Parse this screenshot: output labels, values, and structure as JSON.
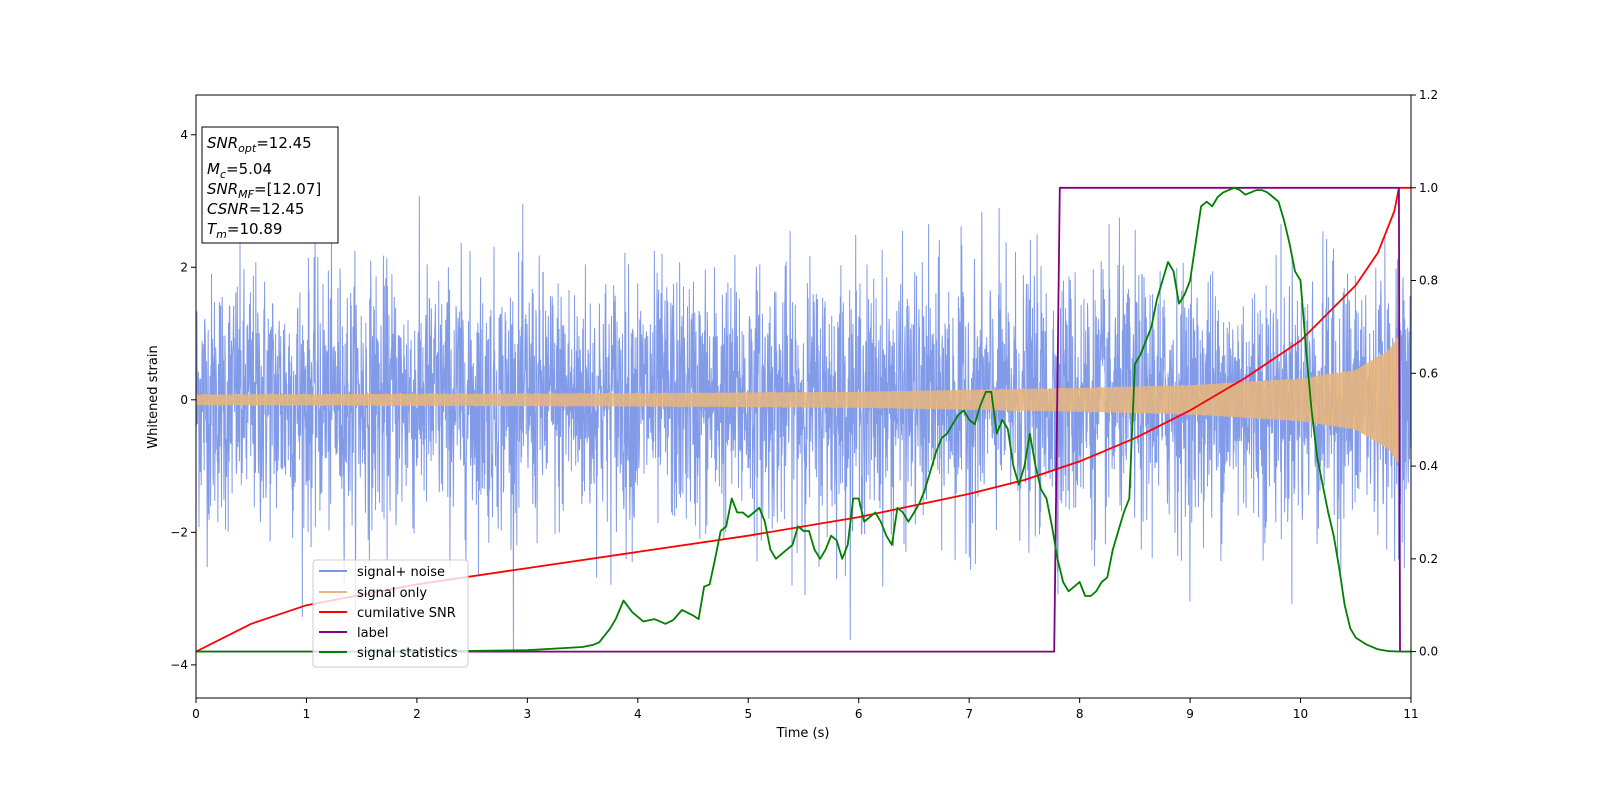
{
  "chart_data": {
    "type": "line",
    "xlabel": "Time (s)",
    "ylabel": "Whitened strain",
    "xlim": [
      0,
      11
    ],
    "ylim_left": [
      -4.5,
      4.6
    ],
    "ylim_right": [
      -0.1,
      1.2
    ],
    "x_ticks": [
      0,
      1,
      2,
      3,
      4,
      5,
      6,
      7,
      8,
      9,
      10,
      11
    ],
    "y_left_ticks": [
      -4,
      -2,
      0,
      2,
      4
    ],
    "y_right_ticks": [
      "0.0",
      "0.2",
      "0.4",
      "0.6",
      "0.8",
      "1.0",
      "1.2"
    ],
    "grid": false,
    "legend": {
      "placement": "lower-left",
      "entries": [
        "signal+ noise",
        "signal only",
        "cumilative SNR",
        "label",
        "signal statistics"
      ]
    },
    "annotation": {
      "lines": [
        {
          "base": "SNR",
          "sub": "opt",
          "value": "=12.45"
        },
        {
          "base": "M",
          "sub": "c",
          "value": "=5.04"
        },
        {
          "base": "SNR",
          "sub": "MF",
          "value": "=[12.07]"
        },
        {
          "base": "CSNR",
          "sub": "",
          "value": "=12.45"
        },
        {
          "base": "T",
          "sub": "m",
          "value": "=10.89"
        }
      ]
    },
    "series": [
      {
        "name": "signal+ noise",
        "axis": "left",
        "color": "#7b96e8",
        "style": "noise band",
        "amplitude_range": [
          -4.1,
          4.2
        ],
        "typical_peak": 2.3
      },
      {
        "name": "signal only",
        "axis": "left",
        "color": "#e7b57d",
        "style": "chirp envelope",
        "envelope": {
          "t": [
            0,
            2,
            4,
            6,
            8,
            9,
            10,
            10.5,
            10.8,
            10.9,
            11
          ],
          "amp": [
            0.08,
            0.09,
            0.1,
            0.12,
            0.18,
            0.22,
            0.32,
            0.45,
            0.75,
            1.0,
            0.0
          ]
        }
      },
      {
        "name": "cumilative SNR",
        "axis": "right",
        "color": "#ff0000",
        "x": [
          0,
          0.5,
          1,
          2,
          3,
          4,
          5,
          6,
          7,
          7.5,
          8,
          8.5,
          9,
          9.5,
          10,
          10.5,
          10.7,
          10.85,
          10.89,
          11
        ],
        "y": [
          0.0,
          0.06,
          0.1,
          0.145,
          0.18,
          0.215,
          0.25,
          0.29,
          0.34,
          0.37,
          0.41,
          0.46,
          0.52,
          0.59,
          0.67,
          0.79,
          0.86,
          0.95,
          1.0,
          1.0
        ]
      },
      {
        "name": "label",
        "axis": "right",
        "color": "#800080",
        "x": [
          0,
          7.77,
          7.82,
          10.89,
          10.9,
          11
        ],
        "y": [
          0,
          0,
          1,
          1,
          0,
          0
        ]
      },
      {
        "name": "signal statistics",
        "axis": "right",
        "color": "#008000",
        "x": [
          0,
          1,
          2,
          3,
          3.5,
          3.6,
          3.65,
          3.75,
          3.8,
          3.87,
          3.95,
          4.05,
          4.15,
          4.25,
          4.32,
          4.4,
          4.5,
          4.55,
          4.6,
          4.65,
          4.7,
          4.75,
          4.8,
          4.85,
          4.9,
          4.95,
          5.0,
          5.05,
          5.1,
          5.15,
          5.2,
          5.25,
          5.3,
          5.35,
          5.4,
          5.45,
          5.5,
          5.55,
          5.6,
          5.65,
          5.7,
          5.75,
          5.8,
          5.85,
          5.9,
          5.95,
          6.0,
          6.05,
          6.1,
          6.15,
          6.2,
          6.25,
          6.3,
          6.35,
          6.4,
          6.45,
          6.5,
          6.55,
          6.6,
          6.65,
          6.7,
          6.75,
          6.8,
          6.85,
          6.9,
          6.95,
          7.0,
          7.05,
          7.1,
          7.15,
          7.2,
          7.25,
          7.3,
          7.35,
          7.4,
          7.45,
          7.5,
          7.55,
          7.6,
          7.65,
          7.7,
          7.75,
          7.8,
          7.85,
          7.9,
          7.95,
          8.0,
          8.05,
          8.1,
          8.15,
          8.2,
          8.25,
          8.3,
          8.35,
          8.4,
          8.45,
          8.5,
          8.55,
          8.6,
          8.65,
          8.7,
          8.75,
          8.8,
          8.85,
          8.9,
          8.95,
          9.0,
          9.05,
          9.1,
          9.15,
          9.2,
          9.25,
          9.3,
          9.35,
          9.4,
          9.45,
          9.5,
          9.55,
          9.6,
          9.65,
          9.7,
          9.75,
          9.8,
          9.85,
          9.9,
          9.95,
          10.0,
          10.05,
          10.1,
          10.15,
          10.2,
          10.25,
          10.3,
          10.35,
          10.4,
          10.45,
          10.5,
          10.6,
          10.7,
          10.8,
          10.9,
          11.0
        ],
        "y": [
          0.0,
          0.0,
          0.0,
          0.003,
          0.01,
          0.015,
          0.02,
          0.05,
          0.07,
          0.11,
          0.085,
          0.065,
          0.07,
          0.06,
          0.068,
          0.09,
          0.078,
          0.07,
          0.14,
          0.145,
          0.2,
          0.26,
          0.27,
          0.33,
          0.3,
          0.3,
          0.29,
          0.3,
          0.31,
          0.28,
          0.22,
          0.2,
          0.21,
          0.22,
          0.23,
          0.27,
          0.26,
          0.26,
          0.22,
          0.2,
          0.22,
          0.25,
          0.24,
          0.2,
          0.23,
          0.33,
          0.33,
          0.28,
          0.29,
          0.3,
          0.28,
          0.25,
          0.23,
          0.31,
          0.3,
          0.28,
          0.3,
          0.32,
          0.35,
          0.39,
          0.43,
          0.46,
          0.47,
          0.49,
          0.51,
          0.52,
          0.5,
          0.49,
          0.53,
          0.56,
          0.56,
          0.47,
          0.5,
          0.48,
          0.4,
          0.36,
          0.4,
          0.47,
          0.4,
          0.35,
          0.33,
          0.27,
          0.2,
          0.15,
          0.13,
          0.14,
          0.15,
          0.12,
          0.12,
          0.13,
          0.15,
          0.16,
          0.22,
          0.26,
          0.3,
          0.33,
          0.62,
          0.64,
          0.67,
          0.7,
          0.76,
          0.8,
          0.84,
          0.82,
          0.75,
          0.77,
          0.8,
          0.88,
          0.96,
          0.97,
          0.96,
          0.98,
          0.99,
          0.995,
          1.0,
          0.995,
          0.985,
          0.99,
          0.995,
          0.995,
          0.99,
          0.98,
          0.97,
          0.93,
          0.88,
          0.82,
          0.8,
          0.65,
          0.52,
          0.42,
          0.36,
          0.3,
          0.25,
          0.18,
          0.1,
          0.05,
          0.03,
          0.015,
          0.005,
          0.001,
          0.0,
          0.0
        ]
      }
    ]
  }
}
